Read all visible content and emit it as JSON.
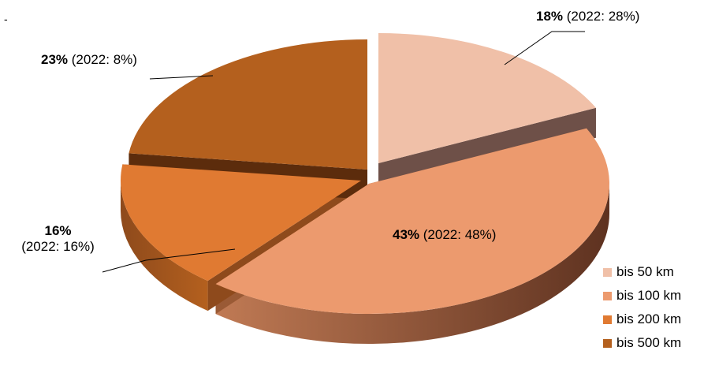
{
  "chart_data": {
    "type": "pie",
    "style": "3d-exploded",
    "slices": [
      {
        "category": "bis 50 km",
        "value": 18,
        "pct_label": "18%",
        "prev_label": "(2022: 28%)",
        "prev_value": 28,
        "color": "#F0C0A8",
        "side": "#6E5048"
      },
      {
        "category": "bis 100 km",
        "value": 43,
        "pct_label": "43%",
        "prev_label": "(2022: 48%)",
        "prev_value": 48,
        "color": "#EC9A6E",
        "side": "#9A5A35"
      },
      {
        "category": "bis 200 km",
        "value": 16,
        "pct_label": "16%",
        "prev_label": "(2022: 16%)",
        "prev_value": 16,
        "color": "#E07A32",
        "side": "#8E4A1C"
      },
      {
        "category": "bis 500 km",
        "value": 23,
        "pct_label": "23%",
        "prev_label": "(2022: 8%)",
        "prev_value": 8,
        "color": "#B4601E",
        "side": "#5C2C0C"
      }
    ],
    "legend_position": "bottom-right",
    "top_left_mark": "-"
  }
}
